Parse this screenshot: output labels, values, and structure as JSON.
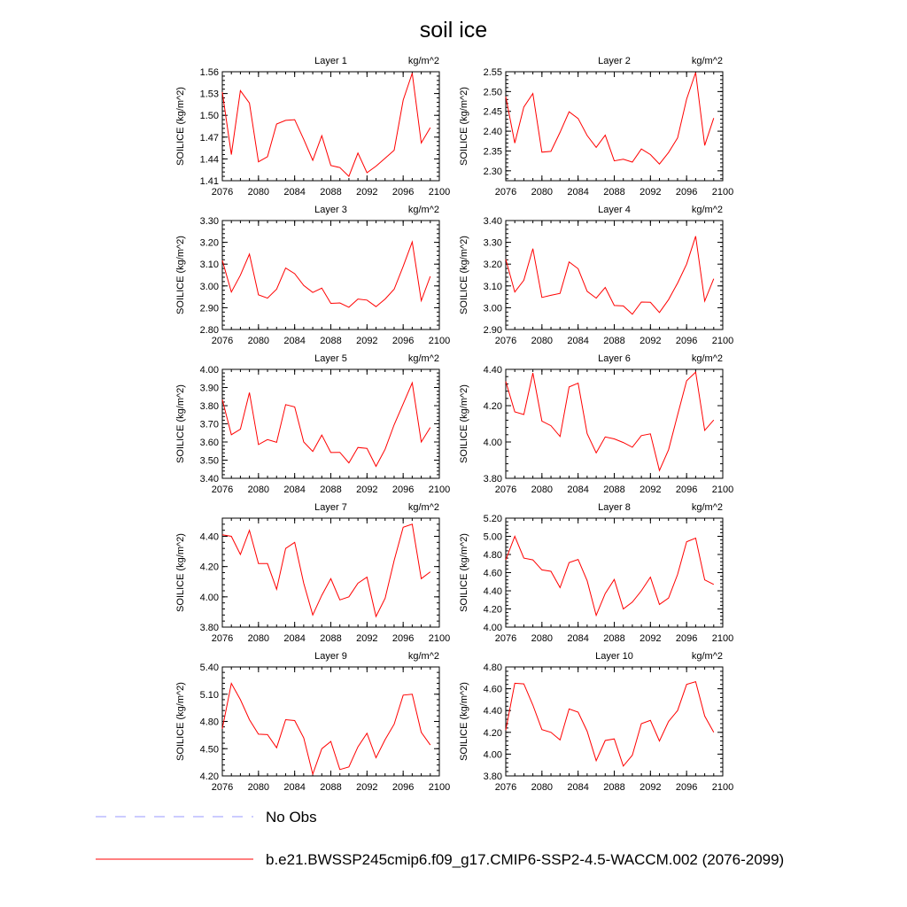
{
  "figure": {
    "title": "soil ice",
    "legend": {
      "obs_label": "No Obs",
      "obs_color": "#9999ff",
      "model_label": "b.e21.BWSSP245cmip6.f09_g17.CMIP6-SSP2-4.5-WACCM.002 (2076-2099)",
      "model_color": "#ff0000"
    }
  },
  "chart_data": [
    {
      "type": "line",
      "title": "Layer 1",
      "units_label": "kg/m^2",
      "ylabel": "SOILICE  (kg/m^2)",
      "xlim": [
        2076,
        2100
      ],
      "ylim": [
        1.41,
        1.56
      ],
      "xticks": [
        "2076",
        "2080",
        "2084",
        "2088",
        "2092",
        "2096",
        "2100"
      ],
      "yticks": [
        "1.41",
        "1.44",
        "1.47",
        "1.50",
        "1.53",
        "1.56"
      ],
      "x": [
        2076,
        2077,
        2078,
        2079,
        2080,
        2081,
        2082,
        2083,
        2084,
        2085,
        2086,
        2087,
        2088,
        2089,
        2090,
        2091,
        2092,
        2093,
        2094,
        2095,
        2096,
        2097,
        2098,
        2099
      ],
      "series": [
        {
          "name": "model",
          "values": [
            1.532,
            1.446,
            1.534,
            1.517,
            1.436,
            1.443,
            1.488,
            1.493,
            1.494,
            1.467,
            1.438,
            1.472,
            1.431,
            1.428,
            1.416,
            1.448,
            1.421,
            1.43,
            1.441,
            1.452,
            1.521,
            1.558,
            1.462,
            1.483
          ]
        }
      ]
    },
    {
      "type": "line",
      "title": "Layer 2",
      "units_label": "kg/m^2",
      "ylabel": "SOILICE  (kg/m^2)",
      "xlim": [
        2076,
        2100
      ],
      "ylim": [
        2.275,
        2.55
      ],
      "xticks": [
        "2076",
        "2080",
        "2084",
        "2088",
        "2092",
        "2096",
        "2100"
      ],
      "yticks": [
        "2.30",
        "2.35",
        "2.40",
        "2.45",
        "2.50",
        "2.55"
      ],
      "x": [
        2076,
        2077,
        2078,
        2079,
        2080,
        2081,
        2082,
        2083,
        2084,
        2085,
        2086,
        2087,
        2088,
        2089,
        2090,
        2091,
        2092,
        2093,
        2094,
        2095,
        2096,
        2097,
        2098,
        2099
      ],
      "series": [
        {
          "name": "model",
          "values": [
            2.487,
            2.37,
            2.461,
            2.495,
            2.347,
            2.349,
            2.397,
            2.449,
            2.432,
            2.389,
            2.359,
            2.39,
            2.325,
            2.329,
            2.322,
            2.355,
            2.341,
            2.317,
            2.346,
            2.383,
            2.481,
            2.548,
            2.364,
            2.433
          ]
        }
      ]
    },
    {
      "type": "line",
      "title": "Layer 3",
      "units_label": "kg/m^2",
      "ylabel": "SOILICE  (kg/m^2)",
      "xlim": [
        2076,
        2100
      ],
      "ylim": [
        2.8,
        3.3
      ],
      "xticks": [
        "2076",
        "2080",
        "2084",
        "2088",
        "2092",
        "2096",
        "2100"
      ],
      "yticks": [
        "2.80",
        "2.90",
        "3.00",
        "3.10",
        "3.20",
        "3.30"
      ],
      "x": [
        2076,
        2077,
        2078,
        2079,
        2080,
        2081,
        2082,
        2083,
        2084,
        2085,
        2086,
        2087,
        2088,
        2089,
        2090,
        2091,
        2092,
        2093,
        2094,
        2095,
        2096,
        2097,
        2098,
        2099
      ],
      "series": [
        {
          "name": "model",
          "values": [
            3.117,
            2.972,
            3.049,
            3.146,
            2.959,
            2.944,
            2.985,
            3.082,
            3.056,
            3.002,
            2.97,
            2.99,
            2.92,
            2.922,
            2.902,
            2.94,
            2.935,
            2.905,
            2.94,
            2.985,
            3.09,
            3.202,
            2.932,
            3.044
          ]
        }
      ]
    },
    {
      "type": "line",
      "title": "Layer 4",
      "units_label": "kg/m^2",
      "ylabel": "SOILICE  (kg/m^2)",
      "xlim": [
        2076,
        2100
      ],
      "ylim": [
        2.9,
        3.4
      ],
      "xticks": [
        "2076",
        "2080",
        "2084",
        "2088",
        "2092",
        "2096",
        "2100"
      ],
      "yticks": [
        "2.90",
        "3.00",
        "3.10",
        "3.20",
        "3.30",
        "3.40"
      ],
      "x": [
        2076,
        2077,
        2078,
        2079,
        2080,
        2081,
        2082,
        2083,
        2084,
        2085,
        2086,
        2087,
        2088,
        2089,
        2090,
        2091,
        2092,
        2093,
        2094,
        2095,
        2096,
        2097,
        2098,
        2099
      ],
      "series": [
        {
          "name": "model",
          "values": [
            3.222,
            3.072,
            3.126,
            3.271,
            3.047,
            3.057,
            3.066,
            3.21,
            3.179,
            3.075,
            3.044,
            3.093,
            3.01,
            3.008,
            2.97,
            3.026,
            3.025,
            2.978,
            3.037,
            3.113,
            3.2,
            3.328,
            3.03,
            3.133
          ]
        }
      ]
    },
    {
      "type": "line",
      "title": "Layer 5",
      "units_label": "kg/m^2",
      "ylabel": "SOILICE  (kg/m^2)",
      "xlim": [
        2076,
        2100
      ],
      "ylim": [
        3.4,
        4.0
      ],
      "xticks": [
        "2076",
        "2080",
        "2084",
        "2088",
        "2092",
        "2096",
        "2100"
      ],
      "yticks": [
        "3.40",
        "3.50",
        "3.60",
        "3.70",
        "3.80",
        "3.90",
        "4.00"
      ],
      "x": [
        2076,
        2077,
        2078,
        2079,
        2080,
        2081,
        2082,
        2083,
        2084,
        2085,
        2086,
        2087,
        2088,
        2089,
        2090,
        2091,
        2092,
        2093,
        2094,
        2095,
        2096,
        2097,
        2098,
        2099
      ],
      "series": [
        {
          "name": "model",
          "values": [
            3.833,
            3.64,
            3.67,
            3.872,
            3.586,
            3.613,
            3.598,
            3.806,
            3.793,
            3.6,
            3.548,
            3.638,
            3.542,
            3.543,
            3.485,
            3.57,
            3.565,
            3.466,
            3.56,
            3.695,
            3.81,
            3.926,
            3.6,
            3.68
          ]
        }
      ]
    },
    {
      "type": "line",
      "title": "Layer 6",
      "units_label": "kg/m^2",
      "ylabel": "SOILICE  (kg/m^2)",
      "xlim": [
        2076,
        2100
      ],
      "ylim": [
        3.8,
        4.4
      ],
      "xticks": [
        "2076",
        "2080",
        "2084",
        "2088",
        "2092",
        "2096",
        "2100"
      ],
      "yticks": [
        "3.80",
        "4.00",
        "4.20",
        "4.40"
      ],
      "x": [
        2076,
        2077,
        2078,
        2079,
        2080,
        2081,
        2082,
        2083,
        2084,
        2085,
        2086,
        2087,
        2088,
        2089,
        2090,
        2091,
        2092,
        2093,
        2094,
        2095,
        2096,
        2097,
        2098,
        2099
      ],
      "series": [
        {
          "name": "model",
          "values": [
            4.333,
            4.166,
            4.151,
            4.38,
            4.115,
            4.09,
            4.03,
            4.303,
            4.324,
            4.046,
            3.94,
            4.028,
            4.017,
            3.997,
            3.971,
            4.035,
            4.045,
            3.843,
            3.957,
            4.149,
            4.337,
            4.385,
            4.064,
            4.121
          ]
        }
      ]
    },
    {
      "type": "line",
      "title": "Layer 7",
      "units_label": "kg/m^2",
      "ylabel": "SOILICE  (kg/m^2)",
      "xlim": [
        2076,
        2100
      ],
      "ylim": [
        3.8,
        4.52
      ],
      "xticks": [
        "2076",
        "2080",
        "2084",
        "2088",
        "2092",
        "2096",
        "2100"
      ],
      "yticks": [
        "3.80",
        "4.00",
        "4.20",
        "4.40"
      ],
      "x": [
        2076,
        2077,
        2078,
        2079,
        2080,
        2081,
        2082,
        2083,
        2084,
        2085,
        2086,
        2087,
        2088,
        2089,
        2090,
        2091,
        2092,
        2093,
        2094,
        2095,
        2096,
        2097,
        2098,
        2099
      ],
      "series": [
        {
          "name": "model",
          "values": [
            4.41,
            4.4,
            4.28,
            4.44,
            4.22,
            4.22,
            4.05,
            4.32,
            4.36,
            4.09,
            3.88,
            4.01,
            4.12,
            3.98,
            4.0,
            4.09,
            4.13,
            3.87,
            3.99,
            4.24,
            4.46,
            4.48,
            4.12,
            4.165
          ]
        }
      ]
    },
    {
      "type": "line",
      "title": "Layer 8",
      "units_label": "kg/m^2",
      "ylabel": "SOILICE  (kg/m^2)",
      "xlim": [
        2076,
        2100
      ],
      "ylim": [
        4.0,
        5.2
      ],
      "xticks": [
        "2076",
        "2080",
        "2084",
        "2088",
        "2092",
        "2096",
        "2100"
      ],
      "yticks": [
        "4.00",
        "4.20",
        "4.40",
        "4.60",
        "4.80",
        "5.00",
        "5.20"
      ],
      "x": [
        2076,
        2077,
        2078,
        2079,
        2080,
        2081,
        2082,
        2083,
        2084,
        2085,
        2086,
        2087,
        2088,
        2089,
        2090,
        2091,
        2092,
        2093,
        2094,
        2095,
        2096,
        2097,
        2098,
        2099
      ],
      "series": [
        {
          "name": "model",
          "values": [
            4.74,
            5.0,
            4.76,
            4.74,
            4.63,
            4.615,
            4.435,
            4.71,
            4.745,
            4.51,
            4.13,
            4.37,
            4.525,
            4.2,
            4.275,
            4.4,
            4.55,
            4.25,
            4.32,
            4.58,
            4.94,
            4.98,
            4.52,
            4.47
          ]
        }
      ]
    },
    {
      "type": "line",
      "title": "Layer 9",
      "units_label": "kg/m^2",
      "ylabel": "SOILICE  (kg/m^2)",
      "xlim": [
        2076,
        2100
      ],
      "ylim": [
        4.2,
        5.4
      ],
      "xticks": [
        "2076",
        "2080",
        "2084",
        "2088",
        "2092",
        "2096",
        "2100"
      ],
      "yticks": [
        "4.20",
        "4.50",
        "4.80",
        "5.10",
        "5.40"
      ],
      "x": [
        2076,
        2077,
        2078,
        2079,
        2080,
        2081,
        2082,
        2083,
        2084,
        2085,
        2086,
        2087,
        2088,
        2089,
        2090,
        2091,
        2092,
        2093,
        2094,
        2095,
        2096,
        2097,
        2098,
        2099
      ],
      "series": [
        {
          "name": "model",
          "values": [
            4.72,
            5.22,
            5.04,
            4.82,
            4.66,
            4.655,
            4.51,
            4.82,
            4.81,
            4.62,
            4.22,
            4.5,
            4.58,
            4.27,
            4.3,
            4.52,
            4.67,
            4.4,
            4.6,
            4.77,
            5.09,
            5.1,
            4.68,
            4.54
          ]
        }
      ]
    },
    {
      "type": "line",
      "title": "Layer 10",
      "units_label": "kg/m^2",
      "ylabel": "SOILICE  (kg/m^2)",
      "xlim": [
        2076,
        2100
      ],
      "ylim": [
        3.8,
        4.8
      ],
      "xticks": [
        "2076",
        "2080",
        "2084",
        "2088",
        "2092",
        "2096",
        "2100"
      ],
      "yticks": [
        "3.80",
        "4.00",
        "4.20",
        "4.40",
        "4.60",
        "4.80"
      ],
      "x": [
        2076,
        2077,
        2078,
        2079,
        2080,
        2081,
        2082,
        2083,
        2084,
        2085,
        2086,
        2087,
        2088,
        2089,
        2090,
        2091,
        2092,
        2093,
        2094,
        2095,
        2096,
        2097,
        2098,
        2099
      ],
      "series": [
        {
          "name": "model",
          "values": [
            4.22,
            4.65,
            4.645,
            4.45,
            4.225,
            4.2,
            4.13,
            4.415,
            4.385,
            4.21,
            3.94,
            4.125,
            4.14,
            3.89,
            3.99,
            4.28,
            4.31,
            4.12,
            4.3,
            4.4,
            4.64,
            4.665,
            4.35,
            4.2
          ]
        }
      ]
    }
  ]
}
